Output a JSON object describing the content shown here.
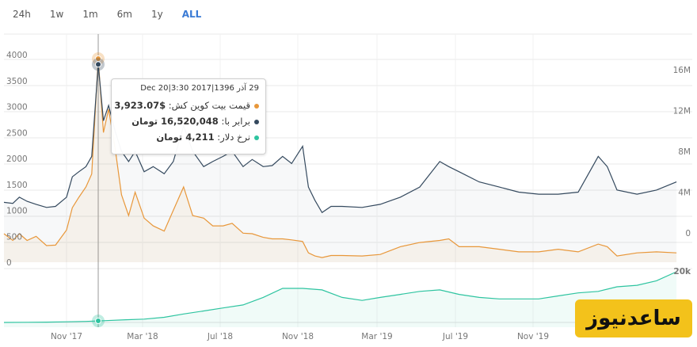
{
  "range_tabs": [
    {
      "label": "24h",
      "active": false
    },
    {
      "label": "1w",
      "active": false
    },
    {
      "label": "1m",
      "active": false
    },
    {
      "label": "6m",
      "active": false
    },
    {
      "label": "1y",
      "active": false
    },
    {
      "label": "ALL",
      "active": true
    }
  ],
  "tooltip": {
    "date": "29 آذر 1396|2017 Dec 20|3:30",
    "rows": [
      {
        "label": "قیمت بیت کوین کش:",
        "value": "$3,923.07",
        "color": "#e8973a"
      },
      {
        "label": "برابر با:",
        "value": "16,520,048 تومان",
        "color": "#34495e"
      },
      {
        "label": "نرخ دلار:",
        "value": "4,211 تومان",
        "color": "#2ec4a0"
      }
    ]
  },
  "watermark": "ساعدنیوز",
  "colors": {
    "price": "#e8973a",
    "toman": "#34495e",
    "dollar": "#2ec4a0",
    "grid": "#e9e9e9"
  },
  "chart_data": {
    "type": "line",
    "x_ticks": [
      "Nov '17",
      "Mar '18",
      "Jul '18",
      "Nov '18",
      "Mar '19",
      "Jul '19",
      "Nov '19"
    ],
    "y_left_ticks": [
      "0",
      "500",
      "1000",
      "1500",
      "2000",
      "2500",
      "3000",
      "3500",
      "4000"
    ],
    "y_right_ticks": [
      "0",
      "4M",
      "8M",
      "12M",
      "16M"
    ],
    "y_dollar_ticks": [
      "20k"
    ],
    "ylim_left": [
      0,
      4000
    ],
    "ylim_right": [
      0,
      16000000
    ],
    "series": [
      {
        "name": "قیمت بیت کوین کش",
        "axis": "left",
        "color": "#e8973a",
        "x": [
          "2017-08-01",
          "2017-08-10",
          "2017-08-20",
          "2017-09-01",
          "2017-09-15",
          "2017-10-01",
          "2017-10-15",
          "2017-11-01",
          "2017-11-10",
          "2017-11-20",
          "2017-12-01",
          "2017-12-10",
          "2017-12-20",
          "2017-12-28",
          "2018-01-05",
          "2018-01-15",
          "2018-01-25",
          "2018-02-05",
          "2018-02-15",
          "2018-03-01",
          "2018-03-15",
          "2018-04-01",
          "2018-04-15",
          "2018-05-01",
          "2018-05-15",
          "2018-06-01",
          "2018-06-15",
          "2018-07-01",
          "2018-07-15",
          "2018-08-01",
          "2018-08-15",
          "2018-09-01",
          "2018-09-15",
          "2018-10-01",
          "2018-10-15",
          "2018-11-01",
          "2018-11-10",
          "2018-11-20",
          "2018-12-01",
          "2018-12-15",
          "2019-01-01",
          "2019-02-01",
          "2019-03-01",
          "2019-04-01",
          "2019-05-01",
          "2019-06-01",
          "2019-06-15",
          "2019-07-01",
          "2019-08-01",
          "2019-09-01",
          "2019-10-01",
          "2019-11-01",
          "2019-12-01",
          "2020-01-01",
          "2020-02-01",
          "2020-02-15",
          "2020-03-01",
          "2020-04-01",
          "2020-05-01",
          "2020-06-01"
        ],
        "values": [
          550,
          420,
          550,
          420,
          500,
          320,
          330,
          620,
          1050,
          1250,
          1450,
          1700,
          3923,
          2500,
          2950,
          2200,
          1300,
          900,
          1350,
          850,
          700,
          600,
          1000,
          1450,
          900,
          850,
          700,
          700,
          750,
          560,
          550,
          480,
          450,
          450,
          430,
          400,
          180,
          120,
          90,
          130,
          130,
          120,
          150,
          300,
          380,
          420,
          450,
          300,
          300,
          250,
          200,
          200,
          250,
          200,
          350,
          300,
          120,
          180,
          200,
          180
        ]
      },
      {
        "name": "برابر با",
        "axis": "right",
        "color": "#34495e",
        "x": [
          "2017-08-01",
          "2017-08-10",
          "2017-08-20",
          "2017-09-01",
          "2017-09-15",
          "2017-10-01",
          "2017-10-15",
          "2017-11-01",
          "2017-11-10",
          "2017-11-20",
          "2017-12-01",
          "2017-12-10",
          "2017-12-20",
          "2017-12-28",
          "2018-01-05",
          "2018-01-15",
          "2018-01-25",
          "2018-02-05",
          "2018-02-15",
          "2018-03-01",
          "2018-03-15",
          "2018-04-01",
          "2018-04-15",
          "2018-05-01",
          "2018-05-15",
          "2018-06-01",
          "2018-06-15",
          "2018-07-01",
          "2018-07-15",
          "2018-08-01",
          "2018-08-15",
          "2018-09-01",
          "2018-09-15",
          "2018-10-01",
          "2018-10-15",
          "2018-11-01",
          "2018-11-10",
          "2018-11-20",
          "2018-12-01",
          "2018-12-15",
          "2019-01-01",
          "2019-02-01",
          "2019-03-01",
          "2019-04-01",
          "2019-05-01",
          "2019-06-01",
          "2019-06-15",
          "2019-07-01",
          "2019-08-01",
          "2019-09-01",
          "2019-10-01",
          "2019-11-01",
          "2019-12-01",
          "2020-01-01",
          "2020-02-01",
          "2020-02-15",
          "2020-03-01",
          "2020-04-01",
          "2020-05-01",
          "2020-06-01"
        ],
        "values": [
          3000000,
          2900000,
          3500000,
          3100000,
          2800000,
          2500000,
          2600000,
          3500000,
          5500000,
          6000000,
          6500000,
          7500000,
          16520048,
          11000000,
          12500000,
          10000000,
          8000000,
          7000000,
          8000000,
          6000000,
          6500000,
          5800000,
          7000000,
          10500000,
          8000000,
          6500000,
          7000000,
          7500000,
          8000000,
          6500000,
          7200000,
          6500000,
          6600000,
          7500000,
          6800000,
          8500000,
          4500000,
          3200000,
          2000000,
          2600000,
          2600000,
          2500000,
          2800000,
          3500000,
          4500000,
          7000000,
          6500000,
          6000000,
          5000000,
          4500000,
          4000000,
          3800000,
          3800000,
          4000000,
          7500000,
          6500000,
          4200000,
          3800000,
          4200000,
          5000000
        ]
      },
      {
        "name": "نرخ دلار",
        "axis": "dollar",
        "color": "#2ec4a0",
        "x": [
          "2017-08-01",
          "2017-09-01",
          "2017-10-01",
          "2017-11-01",
          "2017-12-01",
          "2017-12-20",
          "2018-01-01",
          "2018-02-01",
          "2018-03-01",
          "2018-04-01",
          "2018-05-01",
          "2018-06-01",
          "2018-07-01",
          "2018-08-01",
          "2018-09-01",
          "2018-10-01",
          "2018-11-01",
          "2018-12-01",
          "2019-01-01",
          "2019-02-01",
          "2019-03-01",
          "2019-04-01",
          "2019-05-01",
          "2019-06-01",
          "2019-07-01",
          "2019-08-01",
          "2019-09-01",
          "2019-10-01",
          "2019-11-01",
          "2019-12-01",
          "2020-01-01",
          "2020-02-01",
          "2020-03-01",
          "2020-04-01",
          "2020-05-01",
          "2020-06-01"
        ],
        "values": [
          3700,
          3750,
          3800,
          3900,
          4050,
          4211,
          4300,
          4600,
          4800,
          5400,
          6500,
          7500,
          8500,
          9500,
          12000,
          15000,
          15000,
          14500,
          12000,
          11000,
          12000,
          13000,
          14000,
          14500,
          13000,
          12000,
          11500,
          11500,
          11500,
          12500,
          13500,
          14000,
          15500,
          16000,
          17500,
          20500
        ]
      }
    ],
    "hover": {
      "x": "2017-12-20",
      "price": 3923.07,
      "toman": 16520048,
      "dollar": 4211
    }
  }
}
